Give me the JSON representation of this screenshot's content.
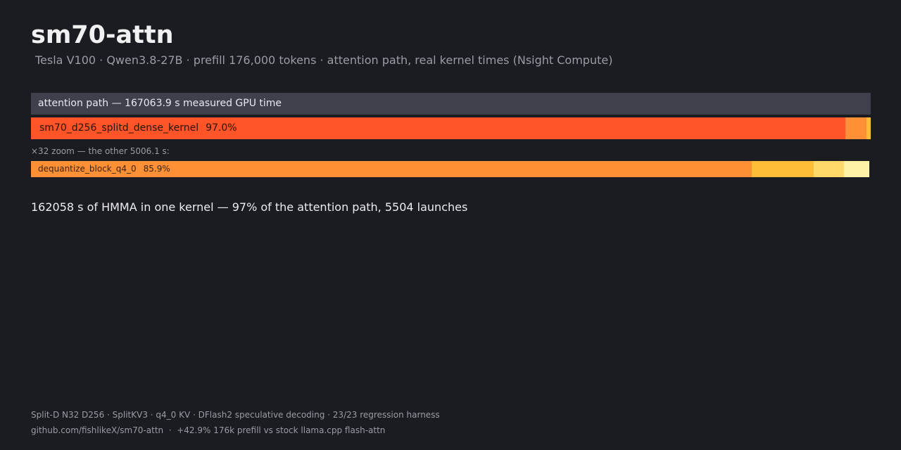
{
  "header": {
    "title": "sm70-attn",
    "subtitle": "Tesla V100 · Qwen3.8-27B · prefill 176,000 tokens · attention path, real kernel times (Nsight Compute)"
  },
  "total": {
    "label": "attention path — 167063.9 s measured GPU time"
  },
  "zoom": {
    "note": "×32 zoom — the other 5006.1 s:"
  },
  "headline": "162058 s of HMMA in one kernel — 97% of the attention path, 5504 launches",
  "footer": {
    "line1": "Split-D N32 D256 · SplitKV3 · q4_0 KV · DFlash2 speculative decoding · 23/23 regression harness",
    "line2": "github.com/fishlikeX/sm70-attn  ·  +42.9% 176k prefill vs stock llama.cpp flash-attn"
  },
  "colors": {
    "background": "#1b1c21",
    "total_bar": "#3e414c",
    "main_kernel": "#ff5428",
    "second": "#ff9035",
    "third": "#ffbd38",
    "fourth": "#ffd96a",
    "fifth": "#fff2a6"
  },
  "chart_data": [
    {
      "type": "bar",
      "orientation": "horizontal-stacked",
      "total_seconds": 167063.9,
      "segments": [
        {
          "name": "sm70_d256_splitd_dense_kernel",
          "percent_label": "97.0%",
          "value": 97.0,
          "color": "#ff5428"
        },
        {
          "name": "",
          "percent_label": "",
          "value": 2.5,
          "color": "#ff9035"
        },
        {
          "name": "",
          "percent_label": "",
          "value": 0.5,
          "color": "#ffbd38"
        }
      ]
    },
    {
      "type": "bar",
      "orientation": "horizontal-stacked",
      "scale_factor": 32,
      "total_seconds": 5006.1,
      "segments": [
        {
          "name": "dequantize_block_q4_0",
          "percent_label": "85.9%",
          "value": 85.9,
          "color": "#ff9035"
        },
        {
          "name": "",
          "percent_label": "",
          "value": 7.4,
          "color": "#ffbd38"
        },
        {
          "name": "",
          "percent_label": "",
          "value": 3.6,
          "color": "#ffd96a"
        },
        {
          "name": "",
          "percent_label": "",
          "value": 3.0,
          "color": "#fff2a6"
        }
      ]
    }
  ]
}
